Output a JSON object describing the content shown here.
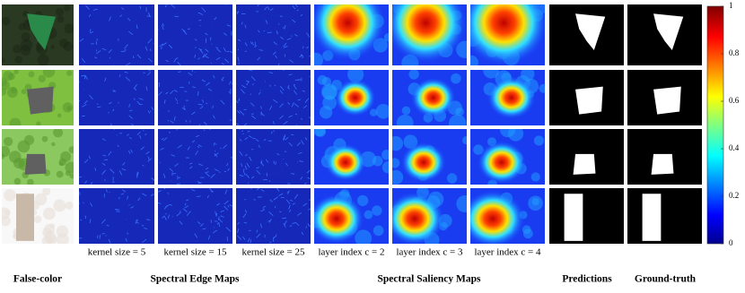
{
  "false_color": {
    "title": "False-color"
  },
  "edge_maps": {
    "title": "Spectral Edge Maps",
    "labels": [
      "kernel size = 5",
      "kernel size = 15",
      "kernel size = 25"
    ]
  },
  "saliency_maps": {
    "title": "Spectral Saliency Maps",
    "labels": [
      "layer index c = 2",
      "layer index c = 3",
      "layer index c = 4"
    ]
  },
  "predictions": {
    "title": "Predictions"
  },
  "ground_truth": {
    "title": "Ground-truth"
  },
  "colorbar": {
    "lim": [
      0,
      1
    ],
    "ticks": [
      0,
      0.2,
      0.4,
      0.6,
      0.8,
      1
    ]
  }
}
